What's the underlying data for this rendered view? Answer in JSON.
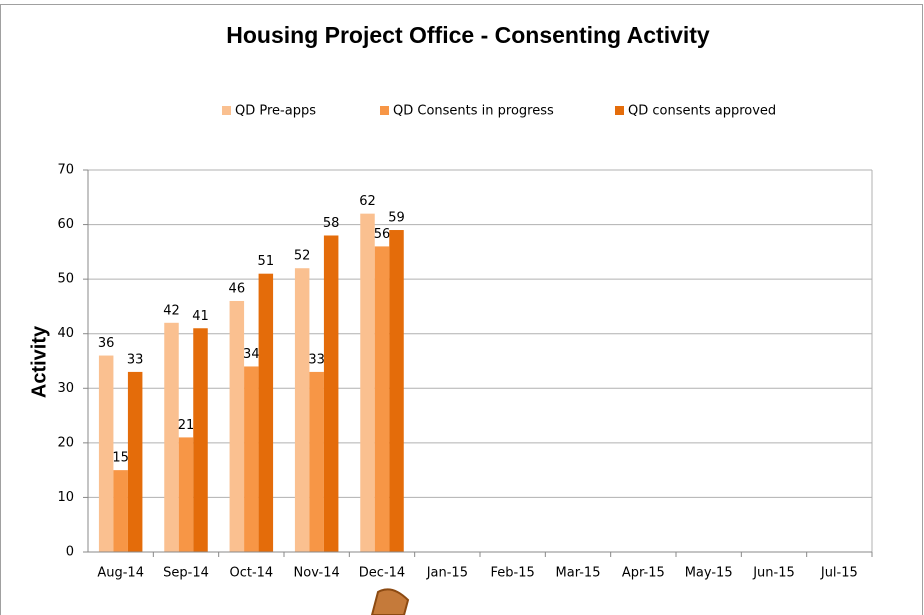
{
  "chart_data": {
    "type": "bar",
    "title": "Housing Project Office - Consenting Activity",
    "y_label": "Activity",
    "categories": [
      "Aug-14",
      "Sep-14",
      "Oct-14",
      "Nov-14",
      "Dec-14",
      "Jan-15",
      "Feb-15",
      "Mar-15",
      "Apr-15",
      "May-15",
      "Jun-15",
      "Jul-15"
    ],
    "series": [
      {
        "name": "QD Pre-apps",
        "color": "#fac090",
        "values": [
          36,
          42,
          46,
          52,
          62,
          null,
          null,
          null,
          null,
          null,
          null,
          null
        ]
      },
      {
        "name": "QD Consents in progress",
        "color": "#f79646",
        "values": [
          15,
          21,
          34,
          33,
          56,
          null,
          null,
          null,
          null,
          null,
          null,
          null
        ]
      },
      {
        "name": "QD consents approved",
        "color": "#e46c0a",
        "values": [
          33,
          41,
          51,
          58,
          59,
          null,
          null,
          null,
          null,
          null,
          null,
          null
        ]
      }
    ],
    "ylim": [
      0,
      70
    ],
    "yticks": [
      0,
      10,
      20,
      30,
      40,
      50,
      60,
      70
    ],
    "grid": true,
    "legend": "top"
  }
}
